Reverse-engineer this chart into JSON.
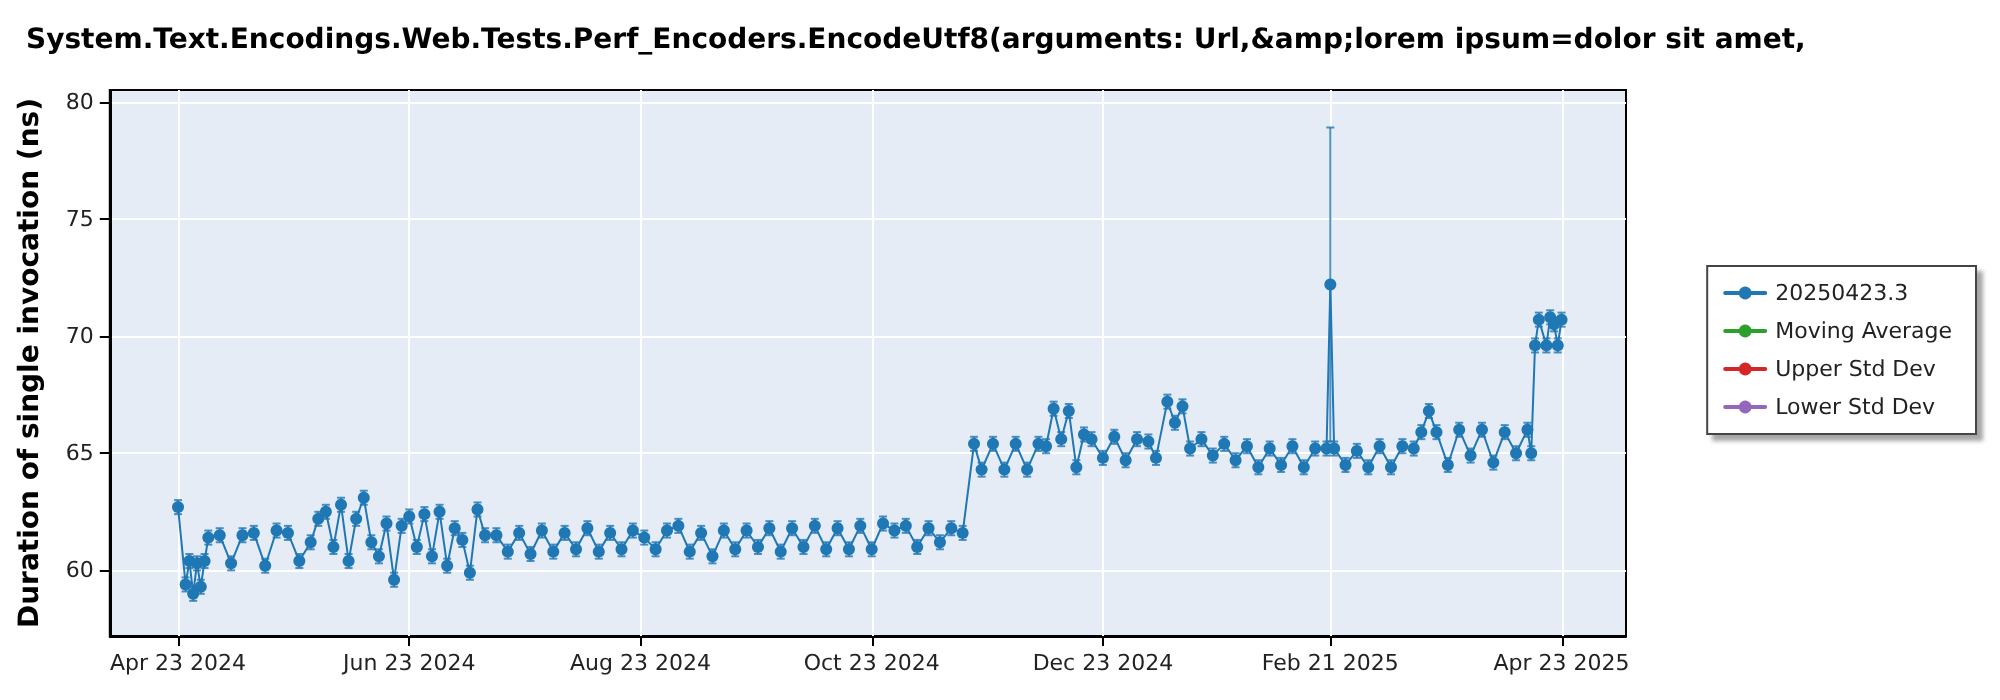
{
  "chart_data": {
    "type": "line",
    "title": "System.Text.Encodings.Web.Tests.Perf_Encoders.EncodeUtf8(arguments: Url,&amp;lorem ipsum=dolor sit amet,",
    "ylabel": "Duration of single invocation (ns)",
    "xlim": [
      "2024-04-05",
      "2025-05-10"
    ],
    "xticks": [
      {
        "value": "2024-04-23",
        "label": "Apr 23 2024"
      },
      {
        "value": "2024-06-23",
        "label": "Jun 23 2024"
      },
      {
        "value": "2024-08-23",
        "label": "Aug 23 2024"
      },
      {
        "value": "2024-10-23",
        "label": "Oct 23 2024"
      },
      {
        "value": "2024-12-23",
        "label": "Dec 23 2024"
      },
      {
        "value": "2025-02-21",
        "label": "Feb 21 2025"
      },
      {
        "value": "2025-04-23",
        "label": "Apr 23 2025"
      }
    ],
    "ylim": [
      57.2,
      80.5
    ],
    "yticks": [
      60,
      65,
      70,
      75,
      80
    ],
    "grid": true,
    "legend": "right",
    "marker": "circle",
    "line_style": "solid",
    "series": [
      {
        "name": "20250423.3",
        "color": "#1f77b4",
        "x": [
          "2024-04-23",
          "2024-04-25",
          "2024-04-26",
          "2024-04-27",
          "2024-04-28",
          "2024-04-29",
          "2024-04-30",
          "2024-05-01",
          "2024-05-04",
          "2024-05-07",
          "2024-05-10",
          "2024-05-13",
          "2024-05-16",
          "2024-05-19",
          "2024-05-22",
          "2024-05-25",
          "2024-05-28",
          "2024-05-30",
          "2024-06-01",
          "2024-06-03",
          "2024-06-05",
          "2024-06-07",
          "2024-06-09",
          "2024-06-11",
          "2024-06-13",
          "2024-06-15",
          "2024-06-17",
          "2024-06-19",
          "2024-06-21",
          "2024-06-23",
          "2024-06-25",
          "2024-06-27",
          "2024-06-29",
          "2024-07-01",
          "2024-07-03",
          "2024-07-05",
          "2024-07-07",
          "2024-07-09",
          "2024-07-11",
          "2024-07-13",
          "2024-07-16",
          "2024-07-19",
          "2024-07-22",
          "2024-07-25",
          "2024-07-28",
          "2024-07-31",
          "2024-08-03",
          "2024-08-06",
          "2024-08-09",
          "2024-08-12",
          "2024-08-15",
          "2024-08-18",
          "2024-08-21",
          "2024-08-24",
          "2024-08-27",
          "2024-08-30",
          "2024-09-02",
          "2024-09-05",
          "2024-09-08",
          "2024-09-11",
          "2024-09-14",
          "2024-09-17",
          "2024-09-20",
          "2024-09-23",
          "2024-09-26",
          "2024-09-29",
          "2024-10-02",
          "2024-10-05",
          "2024-10-08",
          "2024-10-11",
          "2024-10-14",
          "2024-10-17",
          "2024-10-20",
          "2024-10-23",
          "2024-10-26",
          "2024-10-29",
          "2024-11-01",
          "2024-11-04",
          "2024-11-07",
          "2024-11-10",
          "2024-11-13",
          "2024-11-16",
          "2024-11-19",
          "2024-11-21",
          "2024-11-24",
          "2024-11-27",
          "2024-11-30",
          "2024-12-03",
          "2024-12-06",
          "2024-12-08",
          "2024-12-10",
          "2024-12-12",
          "2024-12-14",
          "2024-12-16",
          "2024-12-18",
          "2024-12-20",
          "2024-12-23",
          "2024-12-26",
          "2024-12-29",
          "2025-01-01",
          "2025-01-04",
          "2025-01-06",
          "2025-01-09",
          "2025-01-11",
          "2025-01-13",
          "2025-01-15",
          "2025-01-18",
          "2025-01-21",
          "2025-01-24",
          "2025-01-27",
          "2025-01-30",
          "2025-02-02",
          "2025-02-05",
          "2025-02-08",
          "2025-02-11",
          "2025-02-14",
          "2025-02-17",
          "2025-02-20",
          "2025-02-21",
          "2025-02-22",
          "2025-02-25",
          "2025-02-28",
          "2025-03-03",
          "2025-03-06",
          "2025-03-09",
          "2025-03-12",
          "2025-03-15",
          "2025-03-17",
          "2025-03-19",
          "2025-03-21",
          "2025-03-24",
          "2025-03-27",
          "2025-03-30",
          "2025-04-02",
          "2025-04-05",
          "2025-04-08",
          "2025-04-11",
          "2025-04-14",
          "2025-04-15",
          "2025-04-16",
          "2025-04-17",
          "2025-04-19",
          "2025-04-20",
          "2025-04-21",
          "2025-04-22",
          "2025-04-23"
        ],
        "values": [
          62.7,
          59.4,
          60.4,
          59.0,
          60.3,
          59.3,
          60.4,
          61.4,
          61.5,
          60.3,
          61.5,
          61.6,
          60.2,
          61.7,
          61.6,
          60.4,
          61.2,
          62.2,
          62.5,
          61.0,
          62.8,
          60.4,
          62.2,
          63.1,
          61.2,
          60.6,
          62.0,
          59.6,
          61.9,
          62.3,
          61.0,
          62.4,
          60.6,
          62.5,
          60.2,
          61.8,
          61.3,
          59.9,
          62.6,
          61.5,
          61.5,
          60.8,
          61.6,
          60.7,
          61.7,
          60.8,
          61.6,
          60.9,
          61.8,
          60.8,
          61.6,
          60.9,
          61.7,
          61.4,
          60.9,
          61.7,
          61.9,
          60.8,
          61.6,
          60.6,
          61.7,
          60.9,
          61.7,
          61.0,
          61.8,
          60.8,
          61.8,
          61.0,
          61.9,
          60.9,
          61.8,
          60.9,
          61.9,
          60.9,
          62.0,
          61.7,
          61.9,
          61.0,
          61.8,
          61.2,
          61.8,
          61.6,
          65.4,
          64.3,
          65.4,
          64.3,
          65.4,
          64.3,
          65.4,
          65.3,
          66.9,
          65.6,
          66.8,
          64.4,
          65.8,
          65.6,
          64.8,
          65.7,
          64.7,
          65.6,
          65.5,
          64.8,
          67.2,
          66.3,
          67.0,
          65.2,
          65.6,
          64.9,
          65.4,
          64.7,
          65.3,
          64.4,
          65.2,
          64.5,
          65.3,
          64.4,
          65.2,
          65.2,
          72.2,
          65.2,
          64.5,
          65.1,
          64.4,
          65.3,
          64.4,
          65.3,
          65.2,
          65.9,
          66.8,
          65.9,
          64.5,
          66.0,
          64.9,
          66.0,
          64.6,
          65.9,
          65.0,
          66.0,
          65.0,
          69.6,
          70.7,
          69.6,
          70.8,
          70.5,
          69.6,
          70.7
        ],
        "errors": [
          0.3,
          0.3,
          0.3,
          0.3,
          0.3,
          0.3,
          0.3,
          0.3,
          0.3,
          0.3,
          0.3,
          0.3,
          0.3,
          0.3,
          0.3,
          0.3,
          0.3,
          0.3,
          0.3,
          0.3,
          0.3,
          0.3,
          0.3,
          0.3,
          0.3,
          0.3,
          0.3,
          0.3,
          0.3,
          0.3,
          0.3,
          0.3,
          0.3,
          0.3,
          0.3,
          0.3,
          0.3,
          0.3,
          0.3,
          0.3,
          0.3,
          0.3,
          0.3,
          0.3,
          0.3,
          0.3,
          0.3,
          0.3,
          0.3,
          0.3,
          0.3,
          0.3,
          0.3,
          0.3,
          0.3,
          0.3,
          0.3,
          0.3,
          0.3,
          0.3,
          0.3,
          0.3,
          0.3,
          0.3,
          0.3,
          0.3,
          0.3,
          0.3,
          0.3,
          0.3,
          0.3,
          0.3,
          0.3,
          0.3,
          0.3,
          0.3,
          0.3,
          0.3,
          0.3,
          0.3,
          0.3,
          0.3,
          0.3,
          0.3,
          0.3,
          0.3,
          0.3,
          0.3,
          0.3,
          0.3,
          0.3,
          0.3,
          0.3,
          0.3,
          0.3,
          0.3,
          0.3,
          0.3,
          0.3,
          0.3,
          0.3,
          0.3,
          0.3,
          0.3,
          0.3,
          0.3,
          0.3,
          0.3,
          0.3,
          0.3,
          0.3,
          0.3,
          0.3,
          0.3,
          0.3,
          0.3,
          0.3,
          0.3,
          6.7,
          0.3,
          0.3,
          0.3,
          0.3,
          0.3,
          0.3,
          0.3,
          0.3,
          0.3,
          0.3,
          0.3,
          0.3,
          0.3,
          0.3,
          0.3,
          0.3,
          0.3,
          0.3,
          0.3,
          0.3,
          0.3,
          0.3,
          0.3,
          0.3,
          0.3,
          0.3,
          0.3
        ]
      },
      {
        "name": "Moving Average",
        "color": "#2ca02c"
      },
      {
        "name": "Upper Std Dev",
        "color": "#d62728"
      },
      {
        "name": "Lower Std Dev",
        "color": "#9467bd"
      }
    ]
  }
}
